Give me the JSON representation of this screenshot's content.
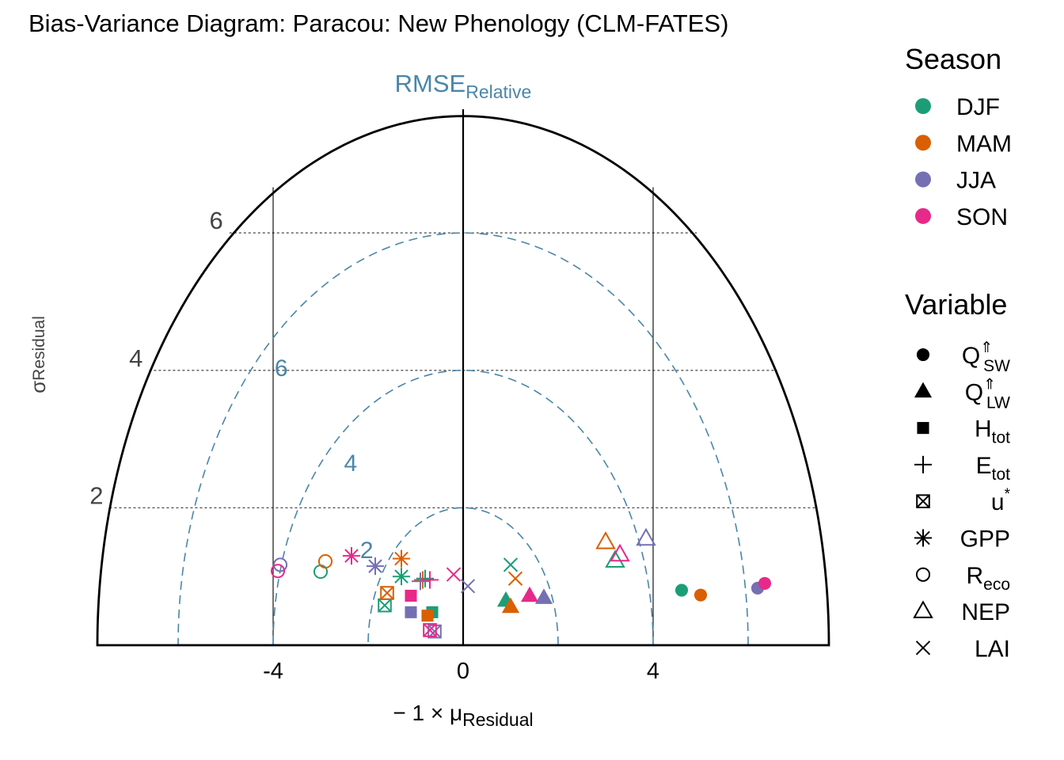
{
  "chart_data": {
    "type": "scatter",
    "title": "Bias-Variance Diagram: Paracou: New Phenology (CLM-FATES)",
    "xlabel": {
      "prefix": "− 1 × μ",
      "sub": "Residual"
    },
    "ylabel": {
      "main": "σ",
      "sub": "Residual"
    },
    "rmse_label": {
      "main": "RMSE",
      "sub": "Relative"
    },
    "xlim": [
      -7.7,
      7.7
    ],
    "ylim": [
      0,
      7.8
    ],
    "x_ticks": [
      "-4",
      "0",
      "4"
    ],
    "x_tick_values": [
      -4,
      0,
      4
    ],
    "y_ticks": [
      "2",
      "4",
      "6"
    ],
    "y_tick_values": [
      2,
      4,
      6
    ],
    "vertical_lines": [
      -4,
      0,
      4
    ],
    "rmse_arcs": [
      2,
      4,
      6
    ],
    "rmse_arc_labels": [
      "2",
      "4",
      "6"
    ],
    "season_colors": {
      "DJF": "#1b9e77",
      "MAM": "#d95f02",
      "JJA": "#7570b3",
      "SON": "#e7298a"
    },
    "legend_season": {
      "title": "Season",
      "items": [
        {
          "label": "DJF",
          "color": "#1b9e77"
        },
        {
          "label": "MAM",
          "color": "#d95f02"
        },
        {
          "label": "JJA",
          "color": "#7570b3"
        },
        {
          "label": "SON",
          "color": "#e7298a"
        }
      ]
    },
    "legend_variable": {
      "title": "Variable",
      "items": [
        {
          "key": "qsw",
          "main": "Q",
          "sup": "⇑",
          "sub": "SW",
          "marker": "filled-circle"
        },
        {
          "key": "qlw",
          "main": "Q",
          "sup": "⇑",
          "sub": "LW",
          "marker": "filled-triangle"
        },
        {
          "key": "htot",
          "main": "H",
          "sup": "",
          "sub": "tot",
          "marker": "filled-square"
        },
        {
          "key": "etot",
          "main": "E",
          "sup": "",
          "sub": "tot",
          "marker": "plus"
        },
        {
          "key": "ustar",
          "main": "u",
          "sup": "*",
          "sub": "",
          "marker": "boxed-x"
        },
        {
          "key": "gpp",
          "main": "GPP",
          "sup": "",
          "sub": "",
          "marker": "asterisk"
        },
        {
          "key": "reco",
          "main": "R",
          "sup": "",
          "sub": "eco",
          "marker": "open-circle"
        },
        {
          "key": "nep",
          "main": "NEP",
          "sup": "",
          "sub": "",
          "marker": "open-triangle"
        },
        {
          "key": "lai",
          "main": "LAI",
          "sup": "",
          "sub": "",
          "marker": "cross"
        }
      ]
    },
    "series": [
      {
        "name": "DJF",
        "points": [
          {
            "var": "qsw",
            "x": 4.6,
            "y": 0.8
          },
          {
            "var": "qlw",
            "x": 0.9,
            "y": 0.65
          },
          {
            "var": "htot",
            "x": -0.65,
            "y": 0.48
          },
          {
            "var": "etot",
            "x": -0.8,
            "y": 0.97
          },
          {
            "var": "ustar",
            "x": -1.65,
            "y": 0.58
          },
          {
            "var": "gpp",
            "x": -1.3,
            "y": 1.0
          },
          {
            "var": "reco",
            "x": -3.0,
            "y": 1.07
          },
          {
            "var": "nep",
            "x": 3.2,
            "y": 1.23
          },
          {
            "var": "lai",
            "x": 1.0,
            "y": 1.17
          }
        ]
      },
      {
        "name": "MAM",
        "points": [
          {
            "var": "qsw",
            "x": 5.0,
            "y": 0.73
          },
          {
            "var": "qlw",
            "x": 1.0,
            "y": 0.56
          },
          {
            "var": "htot",
            "x": -0.75,
            "y": 0.43
          },
          {
            "var": "etot",
            "x": -0.85,
            "y": 0.95
          },
          {
            "var": "ustar",
            "x": -1.6,
            "y": 0.76
          },
          {
            "var": "gpp",
            "x": -1.3,
            "y": 1.26
          },
          {
            "var": "reco",
            "x": -2.9,
            "y": 1.22
          },
          {
            "var": "nep",
            "x": 3.0,
            "y": 1.5
          },
          {
            "var": "lai",
            "x": 1.1,
            "y": 0.97
          }
        ]
      },
      {
        "name": "JJA",
        "points": [
          {
            "var": "qsw",
            "x": 6.2,
            "y": 0.83
          },
          {
            "var": "qlw",
            "x": 1.7,
            "y": 0.69
          },
          {
            "var": "htot",
            "x": -1.1,
            "y": 0.48
          },
          {
            "var": "etot",
            "x": -0.9,
            "y": 0.93
          },
          {
            "var": "ustar",
            "x": -0.6,
            "y": 0.2
          },
          {
            "var": "gpp",
            "x": -1.85,
            "y": 1.15
          },
          {
            "var": "reco",
            "x": -3.85,
            "y": 1.17
          },
          {
            "var": "nep",
            "x": 3.85,
            "y": 1.55
          },
          {
            "var": "lai",
            "x": 0.1,
            "y": 0.86
          }
        ]
      },
      {
        "name": "SON",
        "points": [
          {
            "var": "qsw",
            "x": 6.35,
            "y": 0.9
          },
          {
            "var": "qlw",
            "x": 1.4,
            "y": 0.72
          },
          {
            "var": "htot",
            "x": -1.1,
            "y": 0.72
          },
          {
            "var": "etot",
            "x": -0.7,
            "y": 0.95
          },
          {
            "var": "ustar",
            "x": -0.7,
            "y": 0.22
          },
          {
            "var": "gpp",
            "x": -2.35,
            "y": 1.3
          },
          {
            "var": "reco",
            "x": -3.9,
            "y": 1.08
          },
          {
            "var": "nep",
            "x": 3.3,
            "y": 1.32
          },
          {
            "var": "lai",
            "x": -0.2,
            "y": 1.03
          }
        ]
      }
    ]
  }
}
